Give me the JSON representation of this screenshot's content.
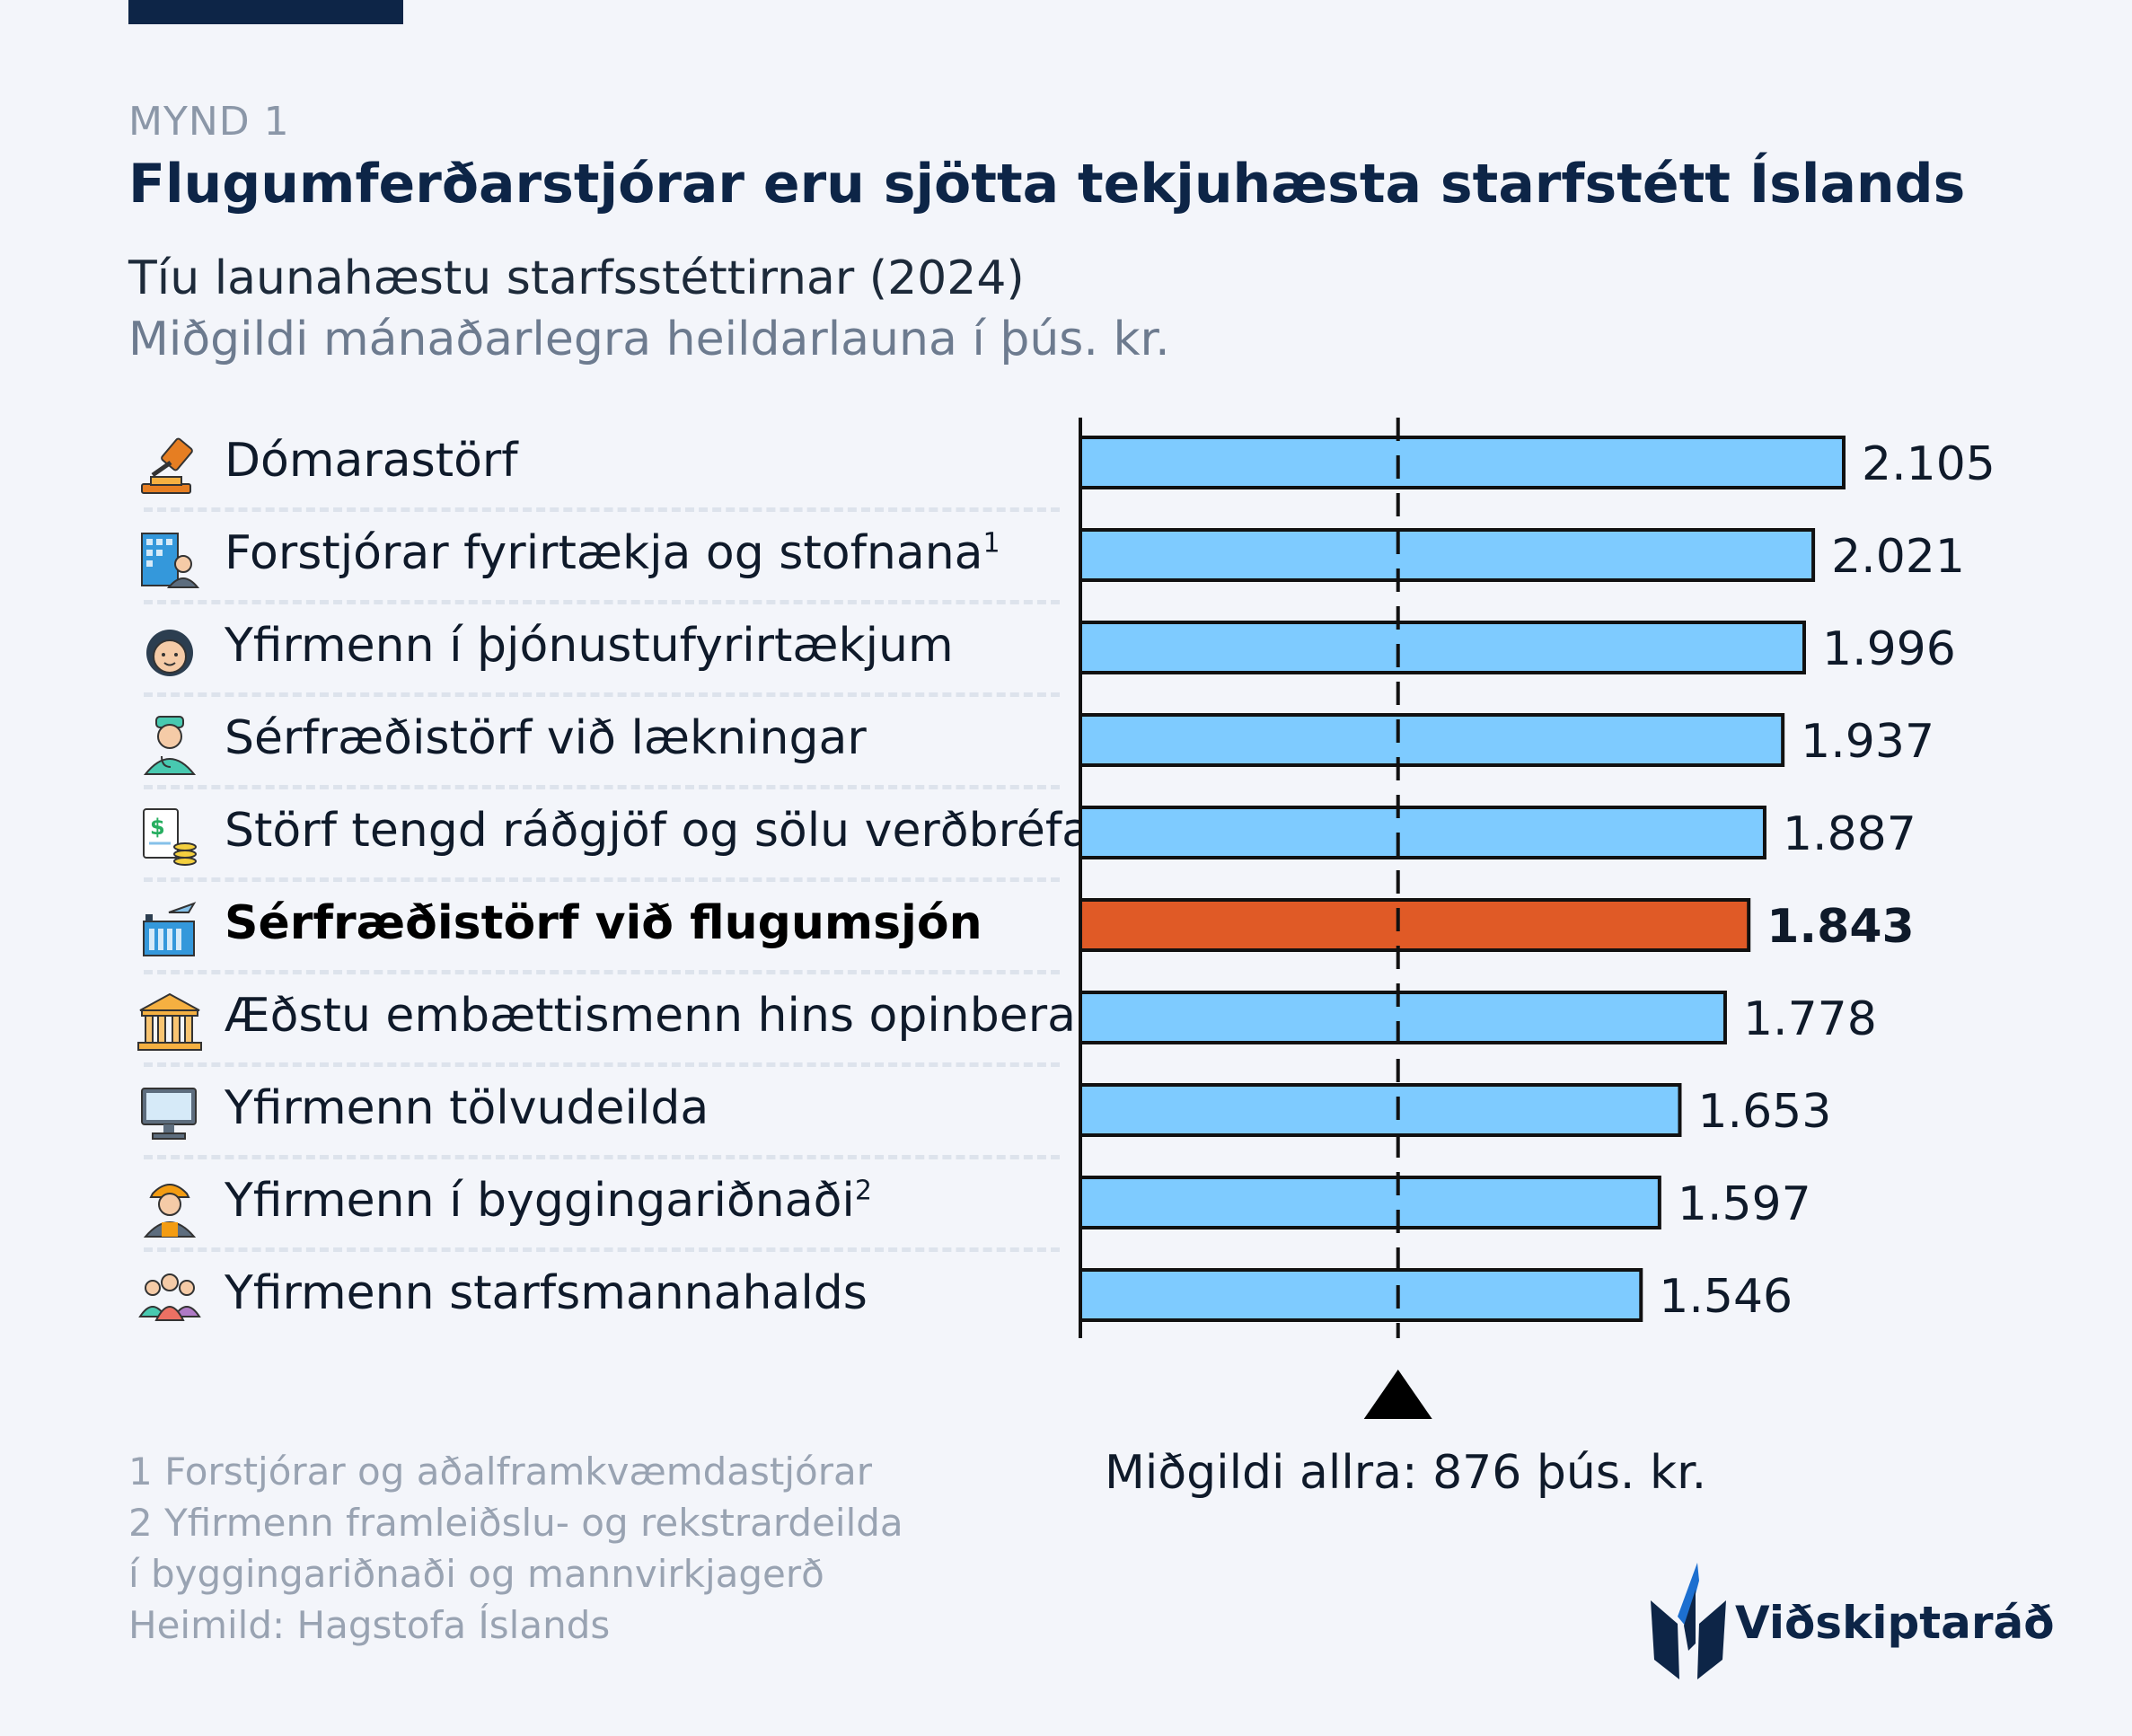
{
  "header": {
    "figure_label": "MYND 1",
    "title": "Flugumferðarstjórar eru sjötta tekjuhæsta starfstétt Íslands",
    "subtitle": "Tíu launahæstu starfsstéttirnar (2024)",
    "subtitle2": "Miðgildi mánaðarlegra heildarlauna í þús. kr."
  },
  "chart_data": {
    "type": "bar",
    "orientation": "horizontal",
    "categories": [
      "Dómarastörf",
      "Forstjórar fyrirtækja og stofnana",
      "Yfirmenn í þjónustufyrirtækjum",
      "Sérfræðistörf við lækningar",
      "Störf tengd ráðgjöf og sölu verðbréfa",
      "Sérfræðistörf við flugumsjón",
      "Æðstu embættismenn hins opinbera",
      "Yfirmenn tölvudeilda",
      "Yfirmenn í byggingariðnaði",
      "Yfirmenn starfsmannahalds"
    ],
    "category_superscripts": [
      "",
      "1",
      "",
      "",
      "",
      "",
      "",
      "",
      "2",
      ""
    ],
    "values": [
      2105,
      2021,
      1996,
      1937,
      1887,
      1843,
      1778,
      1653,
      1597,
      1546
    ],
    "value_labels": [
      "2.105",
      "2.021",
      "1.996",
      "1.937",
      "1.887",
      "1.843",
      "1.778",
      "1.653",
      "1.597",
      "1.546"
    ],
    "highlight_index": 5,
    "reference_line": {
      "value": 876,
      "label": "Miðgildi allra: 876 þús. kr."
    },
    "xlim": [
      0,
      2105
    ],
    "colors": {
      "bar": "#7ecbff",
      "highlight": "#e05a26",
      "outline": "#111111"
    },
    "icons": [
      "gavel-icon",
      "office-building-person-icon",
      "service-woman-icon",
      "doctor-icon",
      "finance-document-icon",
      "air-traffic-control-icon",
      "government-building-icon",
      "computer-monitor-icon",
      "construction-worker-icon",
      "people-group-icon"
    ]
  },
  "footnotes": [
    "1 Forstjórar og aðalframkvæmdastjórar",
    "2 Yfirmenn framleiðslu-  og rekstrardeilda",
    "í byggingariðnaði og mannvirkjagerð",
    "Heimild: Hagstofa Íslands"
  ],
  "logo": {
    "name": "Viðskiptaráð"
  }
}
